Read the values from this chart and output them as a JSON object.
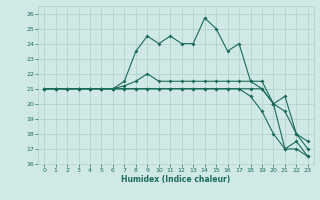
{
  "xlabel": "Humidex (Indice chaleur)",
  "xlim": [
    -0.5,
    23.5
  ],
  "ylim": [
    16,
    26.5
  ],
  "xticks": [
    0,
    1,
    2,
    3,
    4,
    5,
    6,
    7,
    8,
    9,
    10,
    11,
    12,
    13,
    14,
    15,
    16,
    17,
    18,
    19,
    20,
    21,
    22,
    23
  ],
  "yticks": [
    16,
    17,
    18,
    19,
    20,
    21,
    22,
    23,
    24,
    25,
    26
  ],
  "bg_color": "#d0e9e6",
  "grid_color": "#b0ceca",
  "line_color": "#1a6b5a",
  "line1_y": [
    21,
    21,
    21,
    21,
    21,
    21,
    21,
    21.5,
    23.5,
    24.5,
    24,
    24.5,
    24,
    24,
    25.7,
    25,
    23.5,
    24,
    21.5,
    21,
    20,
    17,
    17.5,
    16.5
  ],
  "line2_y": [
    21,
    21,
    21,
    21,
    21,
    21,
    21,
    21.2,
    21.5,
    22,
    21.5,
    21.5,
    21.5,
    21.5,
    21.5,
    21.5,
    21.5,
    21.5,
    21.5,
    21.5,
    20,
    20.5,
    18,
    17.5
  ],
  "line3_y": [
    21,
    21,
    21,
    21,
    21,
    21,
    21,
    21,
    21,
    21,
    21,
    21,
    21,
    21,
    21,
    21,
    21,
    21,
    21,
    21,
    20,
    19.5,
    18,
    17
  ],
  "line4_y": [
    21,
    21,
    21,
    21,
    21,
    21,
    21,
    21,
    21,
    21,
    21,
    21,
    21,
    21,
    21,
    21,
    21,
    21,
    20.5,
    19.5,
    18,
    17,
    17,
    16.5
  ]
}
